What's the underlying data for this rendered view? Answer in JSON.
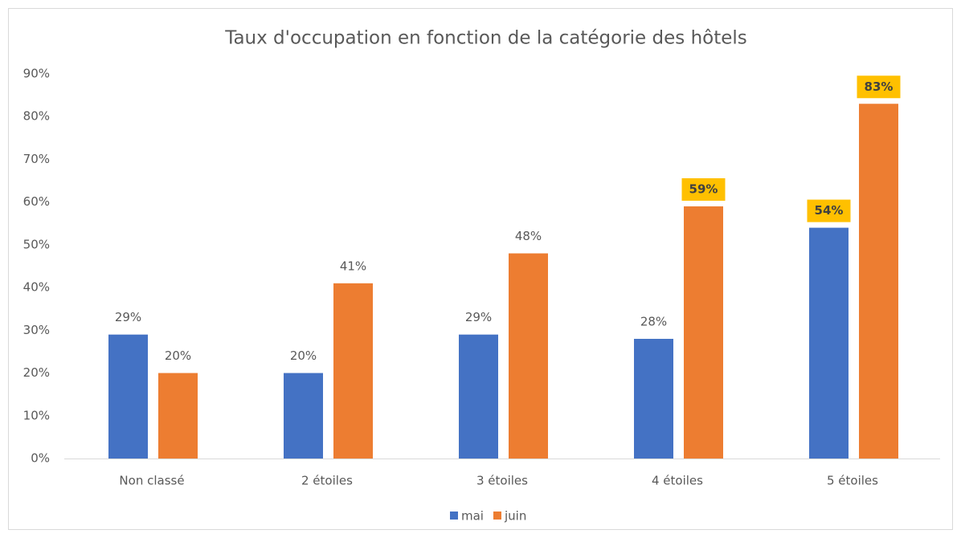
{
  "chart_data": {
    "type": "bar",
    "title": "Taux d'occupation en fonction de la catégorie des hôtels",
    "categories": [
      "Non classé",
      "2 étoiles",
      "3 étoiles",
      "4 étoiles",
      "5 étoiles"
    ],
    "series": [
      {
        "name": "mai",
        "color": "#4472c4",
        "values": [
          29,
          20,
          29,
          28,
          54
        ],
        "value_labels": [
          "29%",
          "20%",
          "29%",
          "28%",
          "54%"
        ],
        "highlighted": [
          false,
          false,
          false,
          false,
          true
        ]
      },
      {
        "name": "juin",
        "color": "#ed7d31",
        "values": [
          20,
          41,
          48,
          59,
          83
        ],
        "value_labels": [
          "20%",
          "41%",
          "48%",
          "59%",
          "83%"
        ],
        "highlighted": [
          false,
          false,
          false,
          true,
          true
        ]
      }
    ],
    "highlight_color": "#ffc000",
    "ylim": [
      0,
      90
    ],
    "yticks": [
      {
        "value": 0,
        "label": "0%"
      },
      {
        "value": 10,
        "label": "10%"
      },
      {
        "value": 20,
        "label": "20%"
      },
      {
        "value": 30,
        "label": "30%"
      },
      {
        "value": 40,
        "label": "40%"
      },
      {
        "value": 50,
        "label": "50%"
      },
      {
        "value": 60,
        "label": "60%"
      },
      {
        "value": 70,
        "label": "70%"
      },
      {
        "value": 80,
        "label": "80%"
      },
      {
        "value": 90,
        "label": "90%"
      }
    ],
    "grid": false,
    "legend": "bottom"
  }
}
